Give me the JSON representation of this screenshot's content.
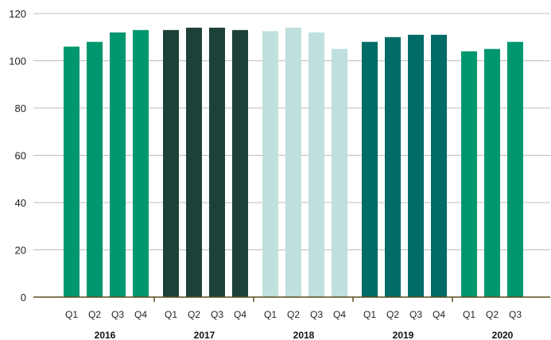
{
  "chart_data": {
    "type": "bar",
    "title": "",
    "xlabel": "",
    "ylabel": "",
    "ylim": [
      0,
      120
    ],
    "yticks": [
      0,
      20,
      40,
      60,
      80,
      100,
      120
    ],
    "grid": true,
    "groups": [
      {
        "label": "2016",
        "color": "#00976f",
        "categories": [
          "Q1",
          "Q2",
          "Q3",
          "Q4"
        ],
        "values": [
          106,
          108,
          112,
          113
        ]
      },
      {
        "label": "2017",
        "color": "#1d4139",
        "categories": [
          "Q1",
          "Q2",
          "Q3",
          "Q4"
        ],
        "values": [
          113,
          114,
          114,
          113
        ]
      },
      {
        "label": "2018",
        "color": "#bfe0dc",
        "categories": [
          "Q1",
          "Q2",
          "Q3",
          "Q4"
        ],
        "values": [
          112.5,
          114,
          112,
          105
        ]
      },
      {
        "label": "2019",
        "color": "#006b67",
        "categories": [
          "Q1",
          "Q2",
          "Q3",
          "Q4"
        ],
        "values": [
          108,
          110,
          111,
          111
        ]
      },
      {
        "label": "2020",
        "color": "#00976f",
        "categories": [
          "Q1",
          "Q2",
          "Q3"
        ],
        "values": [
          104,
          105,
          108
        ]
      }
    ]
  },
  "colors": {
    "grid": "#bdbdbd",
    "axis": "#5a4a1e"
  }
}
